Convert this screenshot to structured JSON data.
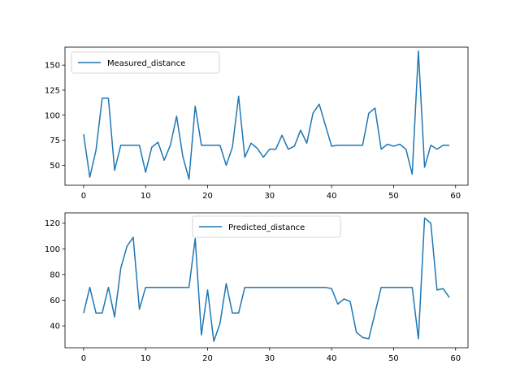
{
  "chart_data": [
    {
      "type": "line",
      "color": "#1f77b4",
      "legend_position": "upper-left",
      "grid": false,
      "xlim": [
        -3,
        62
      ],
      "ylim": [
        30,
        168
      ],
      "xticks": [
        0,
        10,
        20,
        30,
        40,
        50,
        60
      ],
      "yticks": [
        50,
        75,
        100,
        125,
        150
      ],
      "series": [
        {
          "name": "Measured_distance",
          "x": [
            0,
            1,
            2,
            3,
            4,
            5,
            6,
            7,
            8,
            9,
            10,
            11,
            12,
            13,
            14,
            15,
            16,
            17,
            18,
            19,
            20,
            21,
            22,
            23,
            24,
            25,
            26,
            27,
            28,
            29,
            30,
            31,
            32,
            33,
            34,
            35,
            36,
            37,
            38,
            39,
            40,
            41,
            42,
            43,
            44,
            45,
            46,
            47,
            48,
            49,
            50,
            51,
            52,
            53,
            54,
            55,
            56,
            57,
            58,
            59
          ],
          "values": [
            81,
            38,
            65,
            117,
            117,
            45,
            70,
            70,
            70,
            70,
            43,
            68,
            73,
            55,
            70,
            99,
            59,
            36,
            109,
            70,
            70,
            70,
            70,
            50,
            68,
            119,
            58,
            72,
            67,
            58,
            66,
            66,
            80,
            66,
            69,
            85,
            72,
            102,
            111,
            90,
            69,
            70,
            70,
            70,
            70,
            70,
            102,
            107,
            66,
            71,
            69,
            71,
            66,
            41,
            164,
            48,
            70,
            66,
            70,
            70
          ]
        }
      ]
    },
    {
      "type": "line",
      "color": "#1f77b4",
      "legend_position": "upper-center",
      "grid": false,
      "xlim": [
        -3,
        62
      ],
      "ylim": [
        23,
        128
      ],
      "xticks": [
        0,
        10,
        20,
        30,
        40,
        50,
        60
      ],
      "yticks": [
        40,
        60,
        80,
        100,
        120
      ],
      "series": [
        {
          "name": "Predicted_distance",
          "x": [
            0,
            1,
            2,
            3,
            4,
            5,
            6,
            7,
            8,
            9,
            10,
            11,
            12,
            13,
            14,
            15,
            16,
            17,
            18,
            19,
            20,
            21,
            22,
            23,
            24,
            25,
            26,
            27,
            28,
            29,
            30,
            31,
            32,
            33,
            34,
            35,
            36,
            37,
            38,
            39,
            40,
            41,
            42,
            43,
            44,
            45,
            46,
            47,
            48,
            49,
            50,
            51,
            52,
            53,
            54,
            55,
            56,
            57,
            58,
            59
          ],
          "values": [
            50,
            70,
            50,
            50,
            70,
            47,
            85,
            102,
            109,
            53,
            70,
            70,
            70,
            70,
            70,
            70,
            70,
            70,
            108,
            33,
            68,
            28,
            42,
            73,
            50,
            50,
            70,
            70,
            70,
            70,
            70,
            70,
            70,
            70,
            70,
            70,
            70,
            70,
            70,
            70,
            69,
            57,
            61,
            59,
            35,
            31,
            30,
            50,
            70,
            70,
            70,
            70,
            70,
            70,
            30,
            124,
            120,
            68,
            69,
            62
          ]
        }
      ]
    }
  ]
}
